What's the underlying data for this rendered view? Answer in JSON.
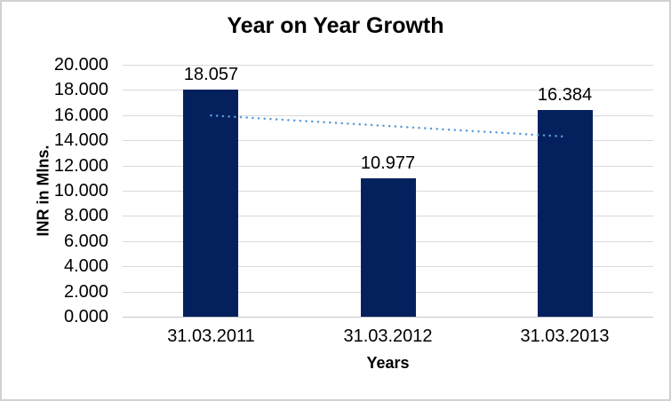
{
  "chart_data": {
    "type": "bar",
    "title": "Year on Year Growth",
    "xlabel": "Years",
    "ylabel": "INR in Mlns.",
    "categories": [
      "31.03.2011",
      "31.03.2012",
      "31.03.2013"
    ],
    "values": [
      18.057,
      10.977,
      16.384
    ],
    "data_labels": [
      "18.057",
      "10.977",
      "16.384"
    ],
    "ylim": [
      0,
      20
    ],
    "ytick_step": 2,
    "ytick_labels": [
      "0.000",
      "2.000",
      "4.000",
      "6.000",
      "8.000",
      "10.000",
      "12.000",
      "14.000",
      "16.000",
      "18.000",
      "20.000"
    ],
    "grid": "horizontal",
    "legend": "none",
    "trendline": {
      "type": "linear",
      "style": "dotted",
      "color": "#5b9bd5",
      "endpoint_values": [
        15.976,
        14.303
      ],
      "span": "first bar center to last bar center"
    },
    "colors": {
      "bar": "#04215e",
      "gridline": "#d9d9d9",
      "axis_line": "#c6c6c6",
      "text": "#000000",
      "background": "#ffffff",
      "frame_border": "#d1d1d1",
      "trendline": "#5b9bd5"
    }
  }
}
